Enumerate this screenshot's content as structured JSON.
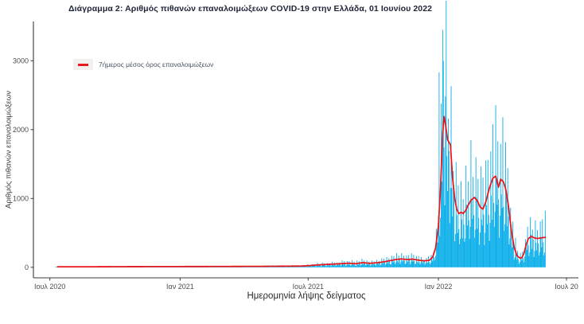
{
  "title": "Διάγραμμα 2: Αριθμός πιθανών επαναλοιμώξεων COVID-19 στην Ελλάδα, 01 Ιουνίου 2022",
  "legend": {
    "label": "7ήμερος μέσος όρος επαναλοιμώξεων"
  },
  "axes": {
    "y_label": "Αριθμός πιθανών επαναλοιμώξεων",
    "x_label": "Ημερομηνία λήψης δείγματος"
  },
  "colors": {
    "bars": "#09aeea",
    "line": "#e8191d",
    "axis": "#3a3a3a",
    "tick_text": "#4d4d4d"
  },
  "chart_data": {
    "type": "bar",
    "subtype": "daily bars with 7-day moving-average line overlay",
    "title": "Διάγραμμα 2: Αριθμός πιθανών επαναλοιμώξεων COVID-19 στην Ελλάδα, 01 Ιουνίου 2022",
    "xlabel": "Ημερομηνία λήψης δείγματος",
    "ylabel": "Αριθμός πιθανών επαναλοιμώξεων",
    "grid": false,
    "legend_position": "inside top-left",
    "x_unit": "days since 2020-07-01",
    "x_ticks": [
      {
        "day": 0,
        "label": "Ιουλ 2020"
      },
      {
        "day": 184,
        "label": "Ιαν 2021"
      },
      {
        "day": 365,
        "label": "Ιουλ 2021"
      },
      {
        "day": 549,
        "label": "Ιαν 2022"
      },
      {
        "day": 730,
        "label": "Ιουλ 20"
      }
    ],
    "y_ticks": [
      0,
      1000,
      2000,
      3000
    ],
    "ylim": [
      0,
      3570
    ],
    "xlim_days": [
      0,
      747
    ],
    "series": [
      {
        "kind": "bar",
        "role": "daily probable reinfections",
        "color": "#09aeea"
      },
      {
        "kind": "line",
        "role": "7-day average",
        "name": "7ήμερος μέσος όρος επαναλοιμώξεων",
        "color": "#e8191d"
      }
    ],
    "line_points": [
      [
        11,
        8
      ],
      [
        60,
        8
      ],
      [
        120,
        10
      ],
      [
        180,
        11
      ],
      [
        240,
        12
      ],
      [
        300,
        14
      ],
      [
        330,
        16
      ],
      [
        355,
        18
      ],
      [
        365,
        24
      ],
      [
        380,
        36
      ],
      [
        395,
        44
      ],
      [
        410,
        52
      ],
      [
        422,
        60
      ],
      [
        432,
        52
      ],
      [
        442,
        68
      ],
      [
        452,
        58
      ],
      [
        462,
        66
      ],
      [
        472,
        80
      ],
      [
        482,
        100
      ],
      [
        490,
        115
      ],
      [
        497,
        122
      ],
      [
        505,
        112
      ],
      [
        512,
        120
      ],
      [
        520,
        105
      ],
      [
        528,
        95
      ],
      [
        536,
        100
      ],
      [
        541,
        150
      ],
      [
        545,
        280
      ],
      [
        549,
        600
      ],
      [
        552,
        1150
      ],
      [
        555,
        1950
      ],
      [
        557,
        2190
      ],
      [
        559,
        2080
      ],
      [
        562,
        1850
      ],
      [
        566,
        1780
      ],
      [
        569,
        1300
      ],
      [
        572,
        1000
      ],
      [
        575,
        840
      ],
      [
        578,
        780
      ],
      [
        581,
        800
      ],
      [
        584,
        780
      ],
      [
        587,
        820
      ],
      [
        591,
        900
      ],
      [
        595,
        975
      ],
      [
        600,
        1015
      ],
      [
        604,
        965
      ],
      [
        608,
        875
      ],
      [
        612,
        845
      ],
      [
        616,
        950
      ],
      [
        621,
        1150
      ],
      [
        626,
        1295
      ],
      [
        630,
        1325
      ],
      [
        634,
        1165
      ],
      [
        637,
        1280
      ],
      [
        641,
        1240
      ],
      [
        644,
        1140
      ],
      [
        648,
        890
      ],
      [
        652,
        540
      ],
      [
        656,
        290
      ],
      [
        660,
        170
      ],
      [
        664,
        135
      ],
      [
        667,
        140
      ],
      [
        670,
        205
      ],
      [
        673,
        330
      ],
      [
        676,
        415
      ],
      [
        680,
        450
      ],
      [
        684,
        430
      ],
      [
        689,
        418
      ],
      [
        694,
        428
      ],
      [
        700,
        435
      ]
    ],
    "bar_model": {
      "start_day": 8,
      "end_day": 700,
      "weekly_factors": [
        1.65,
        0.9,
        0.62,
        1.38,
        0.82,
        0.4,
        0.55
      ],
      "jitter_base": 0.82,
      "jitter_amp": 0.36
    },
    "bar_spikes": {
      "550": 2830,
      "555": 3450,
      "559": 2480,
      "619": 1560,
      "633": 1830,
      "640": 2180
    },
    "notable_values": {
      "peak_daily_bar": 3450,
      "peak_7day_avg": 2190,
      "feb_2022_trough_avg": 780,
      "late_march_2022_avg": 1325,
      "late_april_2022_trough_avg": 135,
      "may_2022_plateau_avg": 430
    }
  }
}
